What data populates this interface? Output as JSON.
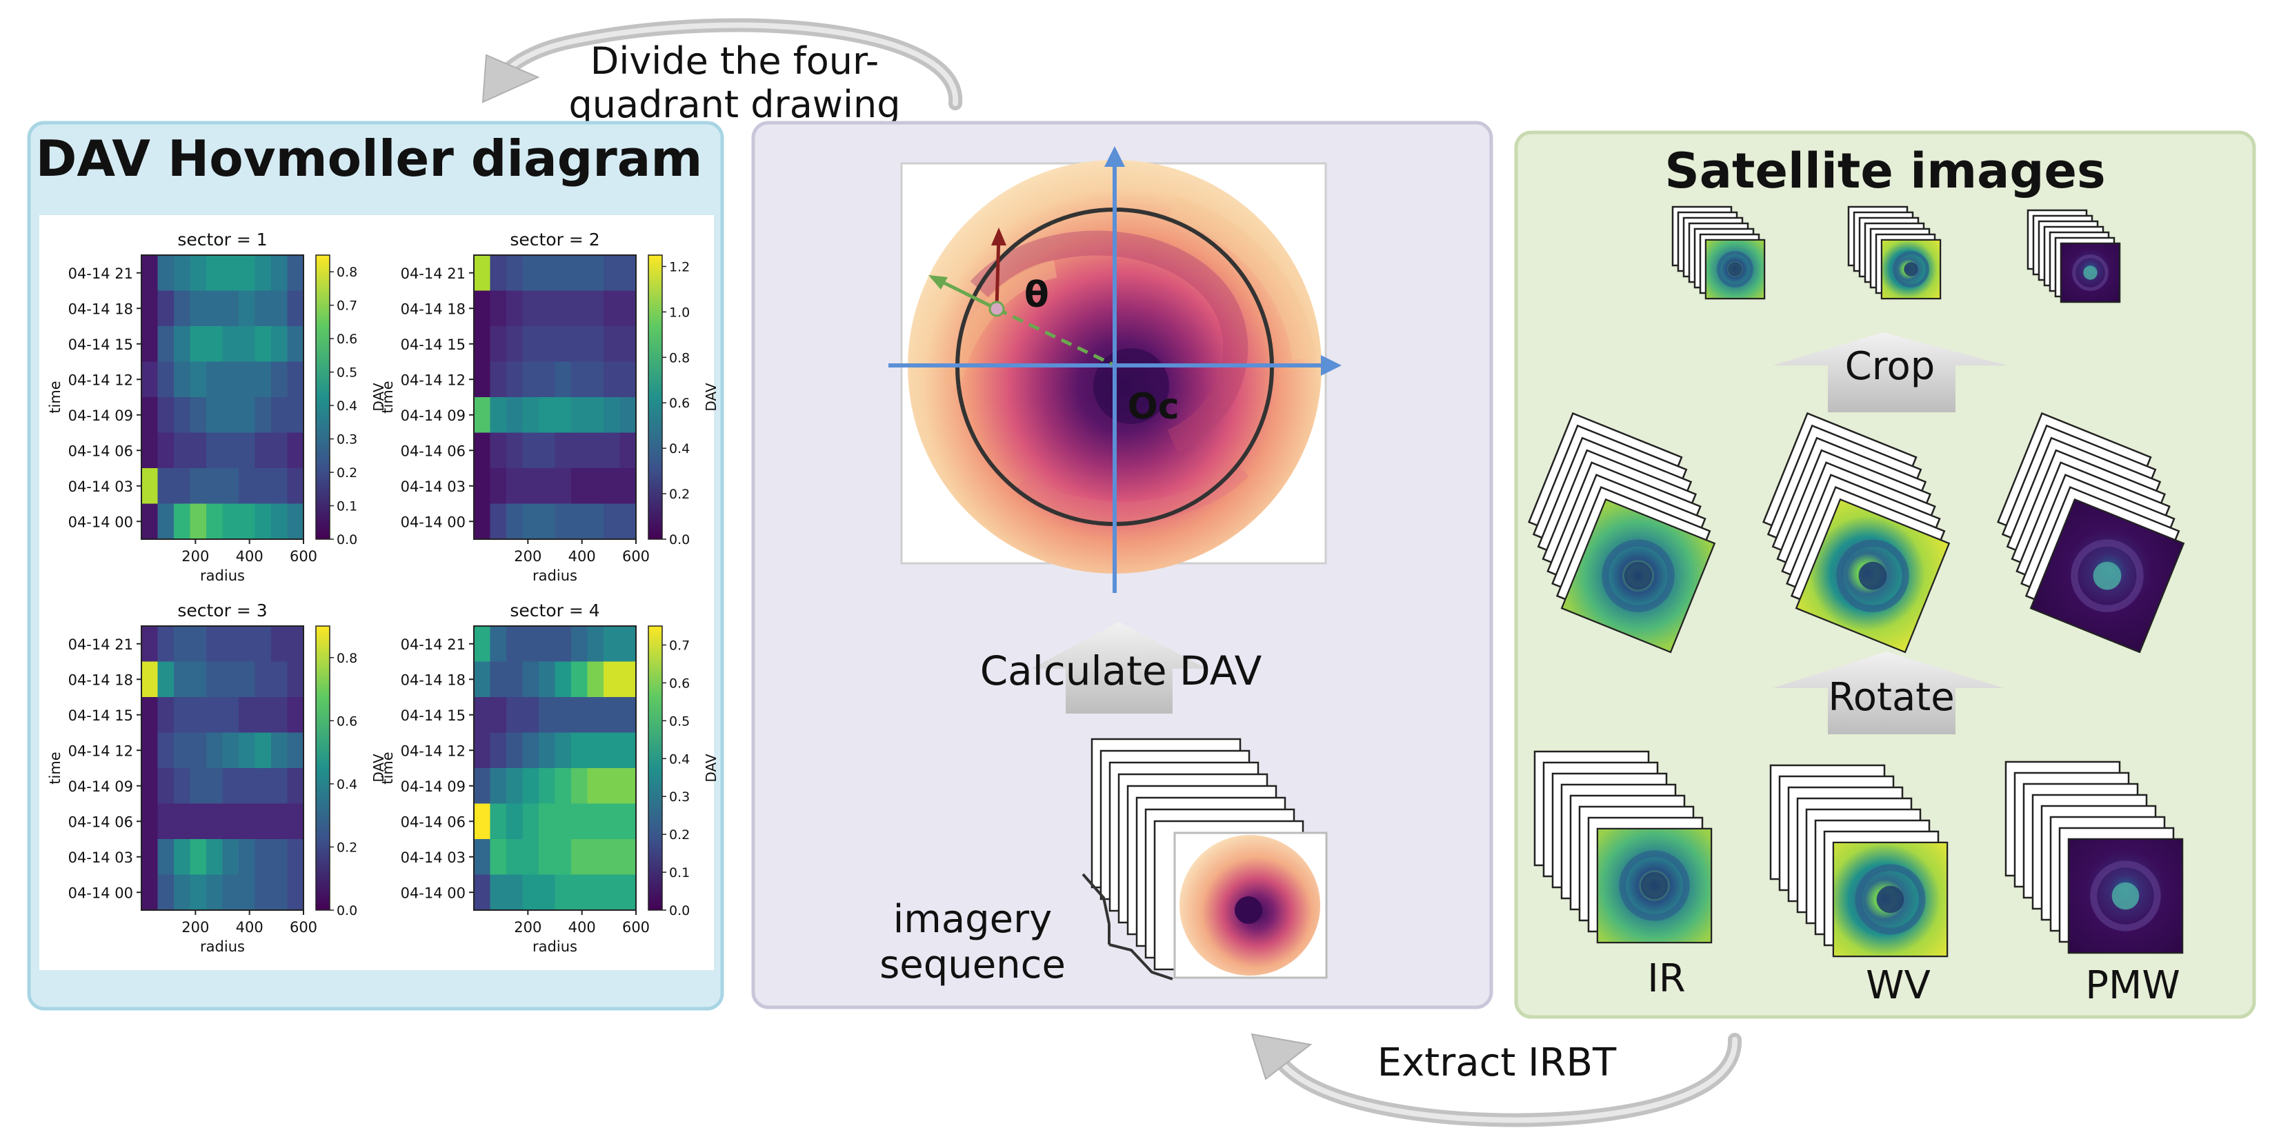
{
  "labels": {
    "divide": [
      "Divide the four-",
      "quadrant drawing"
    ],
    "extract": "Extract IRBT",
    "calculate": "Calculate DAV",
    "imagery": [
      "imagery",
      "sequence"
    ],
    "theta": "θ",
    "oc": "Oc",
    "crop": "Crop",
    "rotate": "Rotate"
  },
  "left_panel": {
    "title": "DAV Hovmoller diagram"
  },
  "right_panel": {
    "title": "Satellite images",
    "channels": [
      "IR",
      "WV",
      "PMW"
    ]
  },
  "chart_data": [
    {
      "type": "heatmap",
      "title": "sector = 1",
      "xlabel": "radius",
      "ylabel": "time",
      "colorbar_label": "DAV",
      "x_ticks": [
        "200",
        "400",
        "600"
      ],
      "x_range": [
        0,
        600
      ],
      "y_ticks": [
        "04-14 21",
        "04-14 18",
        "04-14 15",
        "04-14 12",
        "04-14 09",
        "04-14 06",
        "04-14 03",
        "04-14 00"
      ],
      "colorbar_ticks": [
        "0.0",
        "0.1",
        "0.2",
        "0.3",
        "0.4",
        "0.5",
        "0.6",
        "0.7",
        "0.8"
      ],
      "colorbar_range": [
        0,
        0.85
      ],
      "rows": [
        [
          0.05,
          0.3,
          0.35,
          0.4,
          0.45,
          0.45,
          0.45,
          0.4,
          0.35,
          0.25
        ],
        [
          0.05,
          0.15,
          0.25,
          0.3,
          0.3,
          0.3,
          0.35,
          0.3,
          0.3,
          0.2
        ],
        [
          0.05,
          0.25,
          0.35,
          0.45,
          0.45,
          0.4,
          0.4,
          0.45,
          0.4,
          0.3
        ],
        [
          0.1,
          0.2,
          0.3,
          0.35,
          0.3,
          0.3,
          0.3,
          0.3,
          0.25,
          0.2
        ],
        [
          0.05,
          0.15,
          0.2,
          0.25,
          0.3,
          0.3,
          0.3,
          0.25,
          0.2,
          0.2
        ],
        [
          0.05,
          0.1,
          0.15,
          0.15,
          0.2,
          0.2,
          0.2,
          0.15,
          0.15,
          0.1
        ],
        [
          0.75,
          0.2,
          0.2,
          0.25,
          0.25,
          0.25,
          0.2,
          0.2,
          0.2,
          0.15
        ],
        [
          0.05,
          0.3,
          0.55,
          0.65,
          0.55,
          0.5,
          0.5,
          0.45,
          0.4,
          0.35
        ]
      ]
    },
    {
      "type": "heatmap",
      "title": "sector = 2",
      "xlabel": "radius",
      "ylabel": "time",
      "colorbar_label": "DAV",
      "x_ticks": [
        "200",
        "400",
        "600"
      ],
      "x_range": [
        0,
        600
      ],
      "y_ticks": [
        "04-14 21",
        "04-14 18",
        "04-14 15",
        "04-14 12",
        "04-14 09",
        "04-14 06",
        "04-14 03",
        "04-14 00"
      ],
      "colorbar_ticks": [
        "0.0",
        "0.2",
        "0.4",
        "0.6",
        "0.8",
        "1.0",
        "1.2"
      ],
      "colorbar_range": [
        0,
        1.25
      ],
      "rows": [
        [
          1.1,
          0.25,
          0.3,
          0.35,
          0.35,
          0.35,
          0.35,
          0.35,
          0.3,
          0.3
        ],
        [
          0.05,
          0.1,
          0.15,
          0.2,
          0.2,
          0.2,
          0.2,
          0.2,
          0.15,
          0.15
        ],
        [
          0.05,
          0.15,
          0.2,
          0.25,
          0.25,
          0.25,
          0.25,
          0.25,
          0.2,
          0.2
        ],
        [
          0.05,
          0.2,
          0.25,
          0.3,
          0.3,
          0.35,
          0.3,
          0.3,
          0.25,
          0.25
        ],
        [
          0.9,
          0.6,
          0.55,
          0.6,
          0.65,
          0.65,
          0.6,
          0.6,
          0.55,
          0.5
        ],
        [
          0.05,
          0.15,
          0.2,
          0.25,
          0.25,
          0.2,
          0.2,
          0.2,
          0.2,
          0.15
        ],
        [
          0.05,
          0.1,
          0.15,
          0.15,
          0.15,
          0.15,
          0.1,
          0.1,
          0.1,
          0.1
        ],
        [
          0.05,
          0.25,
          0.35,
          0.4,
          0.4,
          0.35,
          0.35,
          0.35,
          0.3,
          0.3
        ]
      ]
    },
    {
      "type": "heatmap",
      "title": "sector = 3",
      "xlabel": "radius",
      "ylabel": "time",
      "colorbar_label": "DAV",
      "x_ticks": [
        "200",
        "400",
        "600"
      ],
      "x_range": [
        0,
        600
      ],
      "y_ticks": [
        "04-14 21",
        "04-14 18",
        "04-14 15",
        "04-14 12",
        "04-14 09",
        "04-14 06",
        "04-14 03",
        "04-14 00"
      ],
      "colorbar_ticks": [
        "0.0",
        "0.2",
        "0.4",
        "0.6",
        "0.8"
      ],
      "colorbar_range": [
        0,
        0.9
      ],
      "rows": [
        [
          0.1,
          0.2,
          0.25,
          0.25,
          0.2,
          0.2,
          0.2,
          0.2,
          0.15,
          0.15
        ],
        [
          0.85,
          0.45,
          0.3,
          0.3,
          0.25,
          0.25,
          0.25,
          0.2,
          0.2,
          0.15
        ],
        [
          0.05,
          0.15,
          0.2,
          0.2,
          0.2,
          0.2,
          0.15,
          0.15,
          0.15,
          0.1
        ],
        [
          0.05,
          0.2,
          0.25,
          0.25,
          0.3,
          0.35,
          0.4,
          0.45,
          0.35,
          0.3
        ],
        [
          0.05,
          0.15,
          0.2,
          0.25,
          0.25,
          0.2,
          0.2,
          0.2,
          0.2,
          0.15
        ],
        [
          0.05,
          0.1,
          0.1,
          0.1,
          0.1,
          0.1,
          0.1,
          0.1,
          0.1,
          0.1
        ],
        [
          0.05,
          0.3,
          0.45,
          0.55,
          0.45,
          0.35,
          0.3,
          0.25,
          0.25,
          0.2
        ],
        [
          0.05,
          0.25,
          0.35,
          0.4,
          0.35,
          0.3,
          0.3,
          0.25,
          0.25,
          0.2
        ]
      ]
    },
    {
      "type": "heatmap",
      "title": "sector = 4",
      "xlabel": "radius",
      "ylabel": "time",
      "colorbar_label": "DAV",
      "x_ticks": [
        "200",
        "400",
        "600"
      ],
      "x_range": [
        0,
        600
      ],
      "y_ticks": [
        "04-14 21",
        "04-14 18",
        "04-14 15",
        "04-14 12",
        "04-14 09",
        "04-14 06",
        "04-14 03",
        "04-14 00"
      ],
      "colorbar_ticks": [
        "0.0",
        "0.1",
        "0.2",
        "0.3",
        "0.4",
        "0.5",
        "0.6",
        "0.7"
      ],
      "colorbar_range": [
        0,
        0.75
      ],
      "rows": [
        [
          0.45,
          0.25,
          0.2,
          0.2,
          0.2,
          0.2,
          0.25,
          0.3,
          0.35,
          0.35
        ],
        [
          0.3,
          0.2,
          0.2,
          0.25,
          0.3,
          0.4,
          0.5,
          0.6,
          0.7,
          0.7
        ],
        [
          0.1,
          0.1,
          0.15,
          0.15,
          0.2,
          0.2,
          0.2,
          0.2,
          0.2,
          0.2
        ],
        [
          0.1,
          0.15,
          0.2,
          0.25,
          0.3,
          0.35,
          0.4,
          0.4,
          0.4,
          0.4
        ],
        [
          0.2,
          0.3,
          0.35,
          0.4,
          0.45,
          0.5,
          0.55,
          0.6,
          0.6,
          0.6
        ],
        [
          0.75,
          0.45,
          0.4,
          0.45,
          0.5,
          0.5,
          0.5,
          0.5,
          0.5,
          0.5
        ],
        [
          0.25,
          0.5,
          0.45,
          0.45,
          0.5,
          0.5,
          0.55,
          0.55,
          0.55,
          0.55
        ],
        [
          0.15,
          0.35,
          0.35,
          0.4,
          0.4,
          0.45,
          0.45,
          0.45,
          0.45,
          0.45
        ]
      ]
    }
  ]
}
